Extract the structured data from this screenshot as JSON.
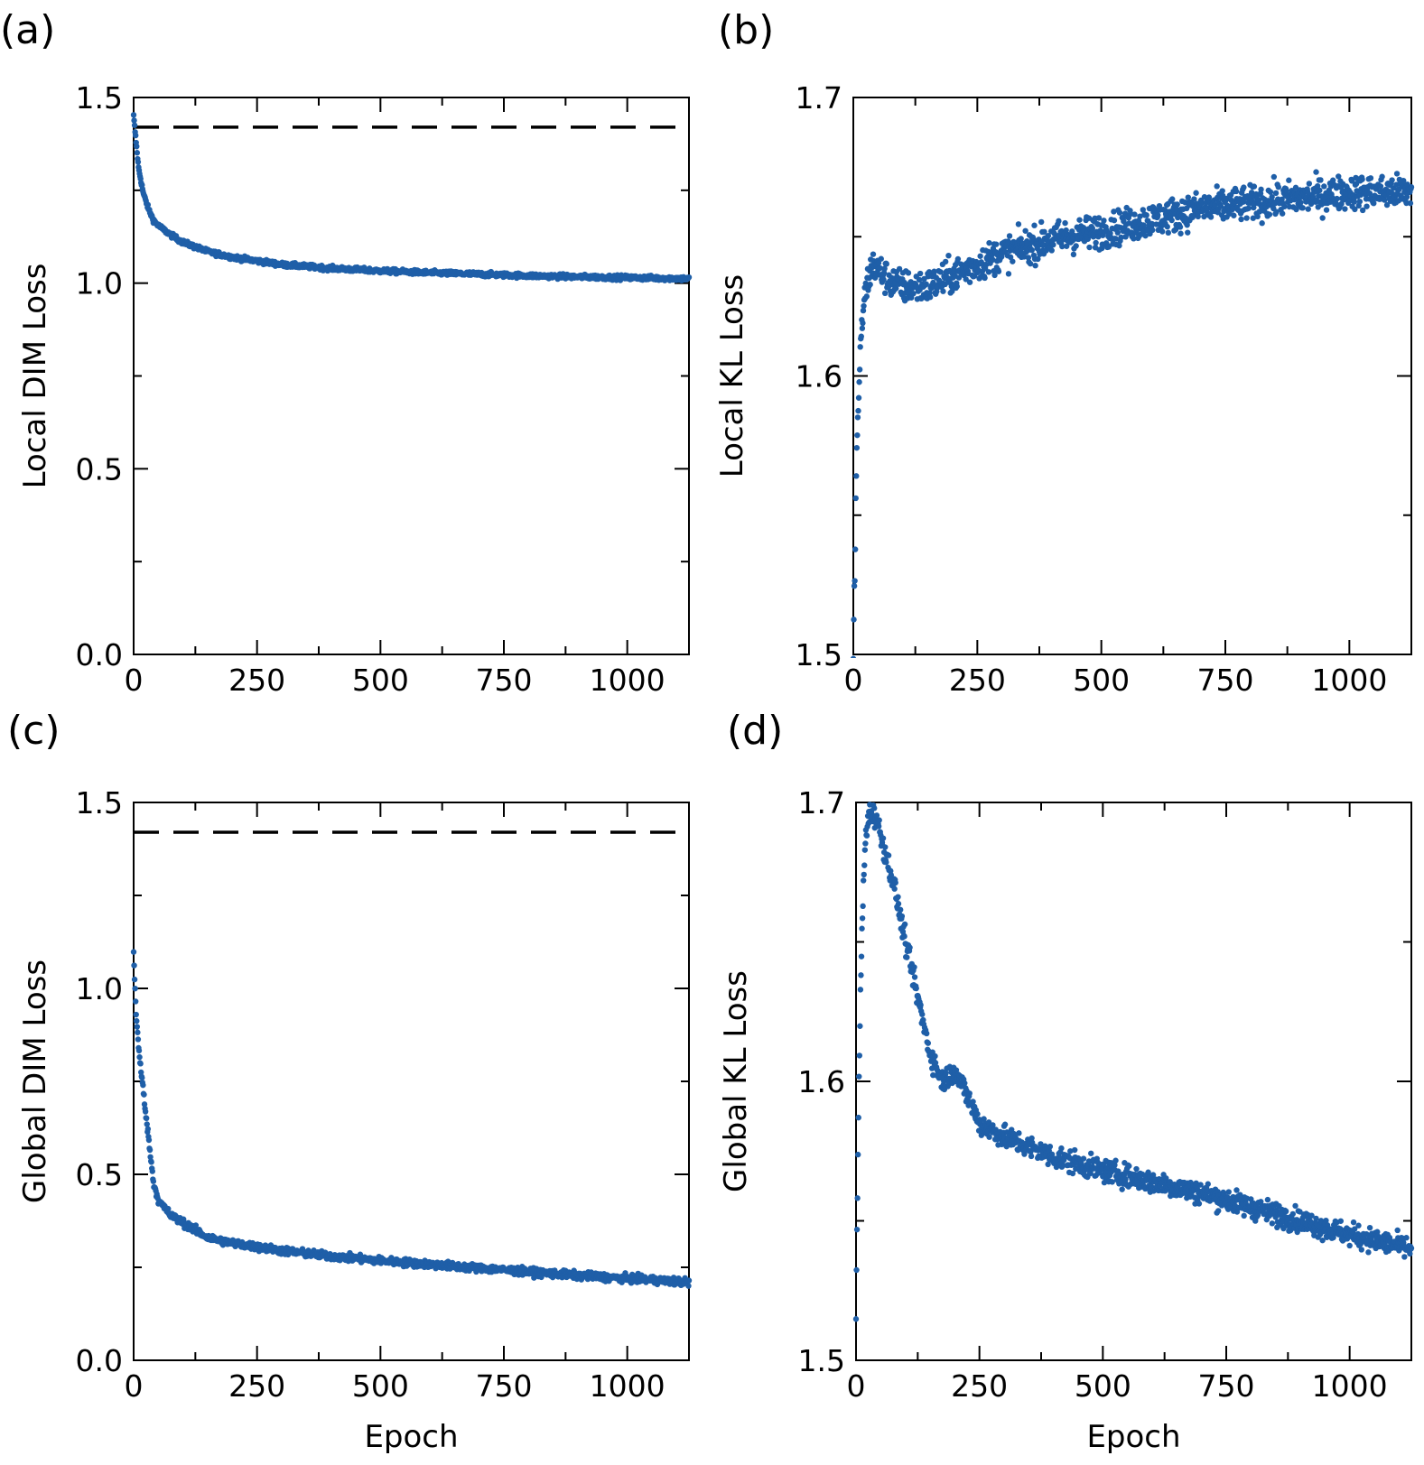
{
  "colors": {
    "points": "#1f5fa8",
    "axes": "#000000",
    "reference_line": "#000000"
  },
  "chart_data": [
    {
      "panel_label": "(a)",
      "type": "scatter",
      "xlabel": "",
      "ylabel": "Local DIM Loss",
      "xlim": [
        0,
        1125
      ],
      "ylim": [
        0,
        1.5
      ],
      "xticks": [
        0,
        250,
        500,
        750,
        1000
      ],
      "xtick_labels": [
        "0",
        "250",
        "500",
        "750",
        "1000"
      ],
      "yticks": [
        0,
        0.5,
        1.0,
        1.5
      ],
      "ytick_labels": [
        "0.0",
        "0.5",
        "1.0",
        "1.5"
      ],
      "reference_line": {
        "y": 1.42,
        "style": "dashed"
      },
      "series": [
        {
          "name": "Local DIM Loss",
          "x": [
            0,
            5,
            10,
            20,
            30,
            40,
            50,
            75,
            100,
            150,
            200,
            250,
            300,
            400,
            500,
            600,
            700,
            800,
            900,
            1000,
            1125
          ],
          "y": [
            1.45,
            1.38,
            1.31,
            1.24,
            1.2,
            1.17,
            1.155,
            1.13,
            1.11,
            1.085,
            1.07,
            1.06,
            1.05,
            1.04,
            1.033,
            1.028,
            1.024,
            1.02,
            1.017,
            1.015,
            1.012
          ],
          "noise": 0.006
        }
      ]
    },
    {
      "panel_label": "(b)",
      "type": "scatter",
      "xlabel": "",
      "ylabel": "Local KL Loss",
      "xlim": [
        0,
        1125
      ],
      "ylim": [
        1.5,
        1.7
      ],
      "xticks": [
        0,
        250,
        500,
        750,
        1000
      ],
      "xtick_labels": [
        "0",
        "250",
        "500",
        "750",
        "1000"
      ],
      "yticks": [
        1.5,
        1.6,
        1.7
      ],
      "ytick_labels": [
        "1.5",
        "1.6",
        "1.7"
      ],
      "series": [
        {
          "name": "Local KL Loss",
          "x": [
            0,
            3,
            6,
            10,
            15,
            20,
            30,
            40,
            50,
            75,
            100,
            150,
            200,
            250,
            300,
            400,
            500,
            600,
            700,
            800,
            900,
            1000,
            1125
          ],
          "y": [
            1.5,
            1.53,
            1.565,
            1.59,
            1.61,
            1.625,
            1.635,
            1.64,
            1.638,
            1.634,
            1.632,
            1.632,
            1.636,
            1.64,
            1.644,
            1.649,
            1.652,
            1.656,
            1.66,
            1.662,
            1.664,
            1.666,
            1.666
          ],
          "noise": 0.006
        }
      ]
    },
    {
      "panel_label": "(c)",
      "type": "scatter",
      "xlabel": "Epoch",
      "ylabel": "Global DIM Loss",
      "xlim": [
        0,
        1125
      ],
      "ylim": [
        0,
        1.5
      ],
      "xticks": [
        0,
        250,
        500,
        750,
        1000
      ],
      "xtick_labels": [
        "0",
        "250",
        "500",
        "750",
        "1000"
      ],
      "yticks": [
        0,
        0.5,
        1.0,
        1.5
      ],
      "ytick_labels": [
        "0.0",
        "0.5",
        "1.0",
        "1.5"
      ],
      "reference_line": {
        "y": 1.42,
        "style": "dashed"
      },
      "series": [
        {
          "name": "Global DIM Loss",
          "x": [
            0,
            5,
            10,
            20,
            30,
            40,
            50,
            75,
            100,
            150,
            200,
            250,
            300,
            400,
            500,
            600,
            700,
            800,
            900,
            1000,
            1125
          ],
          "y": [
            1.1,
            0.93,
            0.84,
            0.72,
            0.6,
            0.48,
            0.43,
            0.39,
            0.37,
            0.33,
            0.315,
            0.305,
            0.295,
            0.28,
            0.268,
            0.258,
            0.248,
            0.238,
            0.228,
            0.22,
            0.21
          ],
          "noise": 0.01
        }
      ]
    },
    {
      "panel_label": "(d)",
      "type": "scatter",
      "xlabel": "Epoch",
      "ylabel": "Global KL Loss",
      "xlim": [
        0,
        1125
      ],
      "ylim": [
        1.5,
        1.7
      ],
      "xticks": [
        0,
        250,
        500,
        750,
        1000
      ],
      "xtick_labels": [
        "0",
        "250",
        "500",
        "750",
        "1000"
      ],
      "yticks": [
        1.5,
        1.6,
        1.7
      ],
      "ytick_labels": [
        "1.5",
        "1.6",
        "1.7"
      ],
      "series": [
        {
          "name": "Global KL Loss",
          "x": [
            0,
            3,
            6,
            10,
            15,
            20,
            30,
            40,
            50,
            75,
            100,
            125,
            150,
            175,
            200,
            225,
            250,
            300,
            400,
            500,
            600,
            700,
            800,
            900,
            1000,
            1125
          ],
          "y": [
            1.515,
            1.56,
            1.6,
            1.64,
            1.67,
            1.69,
            1.697,
            1.695,
            1.688,
            1.672,
            1.65,
            1.63,
            1.61,
            1.6,
            1.604,
            1.595,
            1.585,
            1.58,
            1.573,
            1.568,
            1.564,
            1.56,
            1.555,
            1.55,
            1.545,
            1.54
          ],
          "noise": 0.004
        }
      ]
    }
  ]
}
